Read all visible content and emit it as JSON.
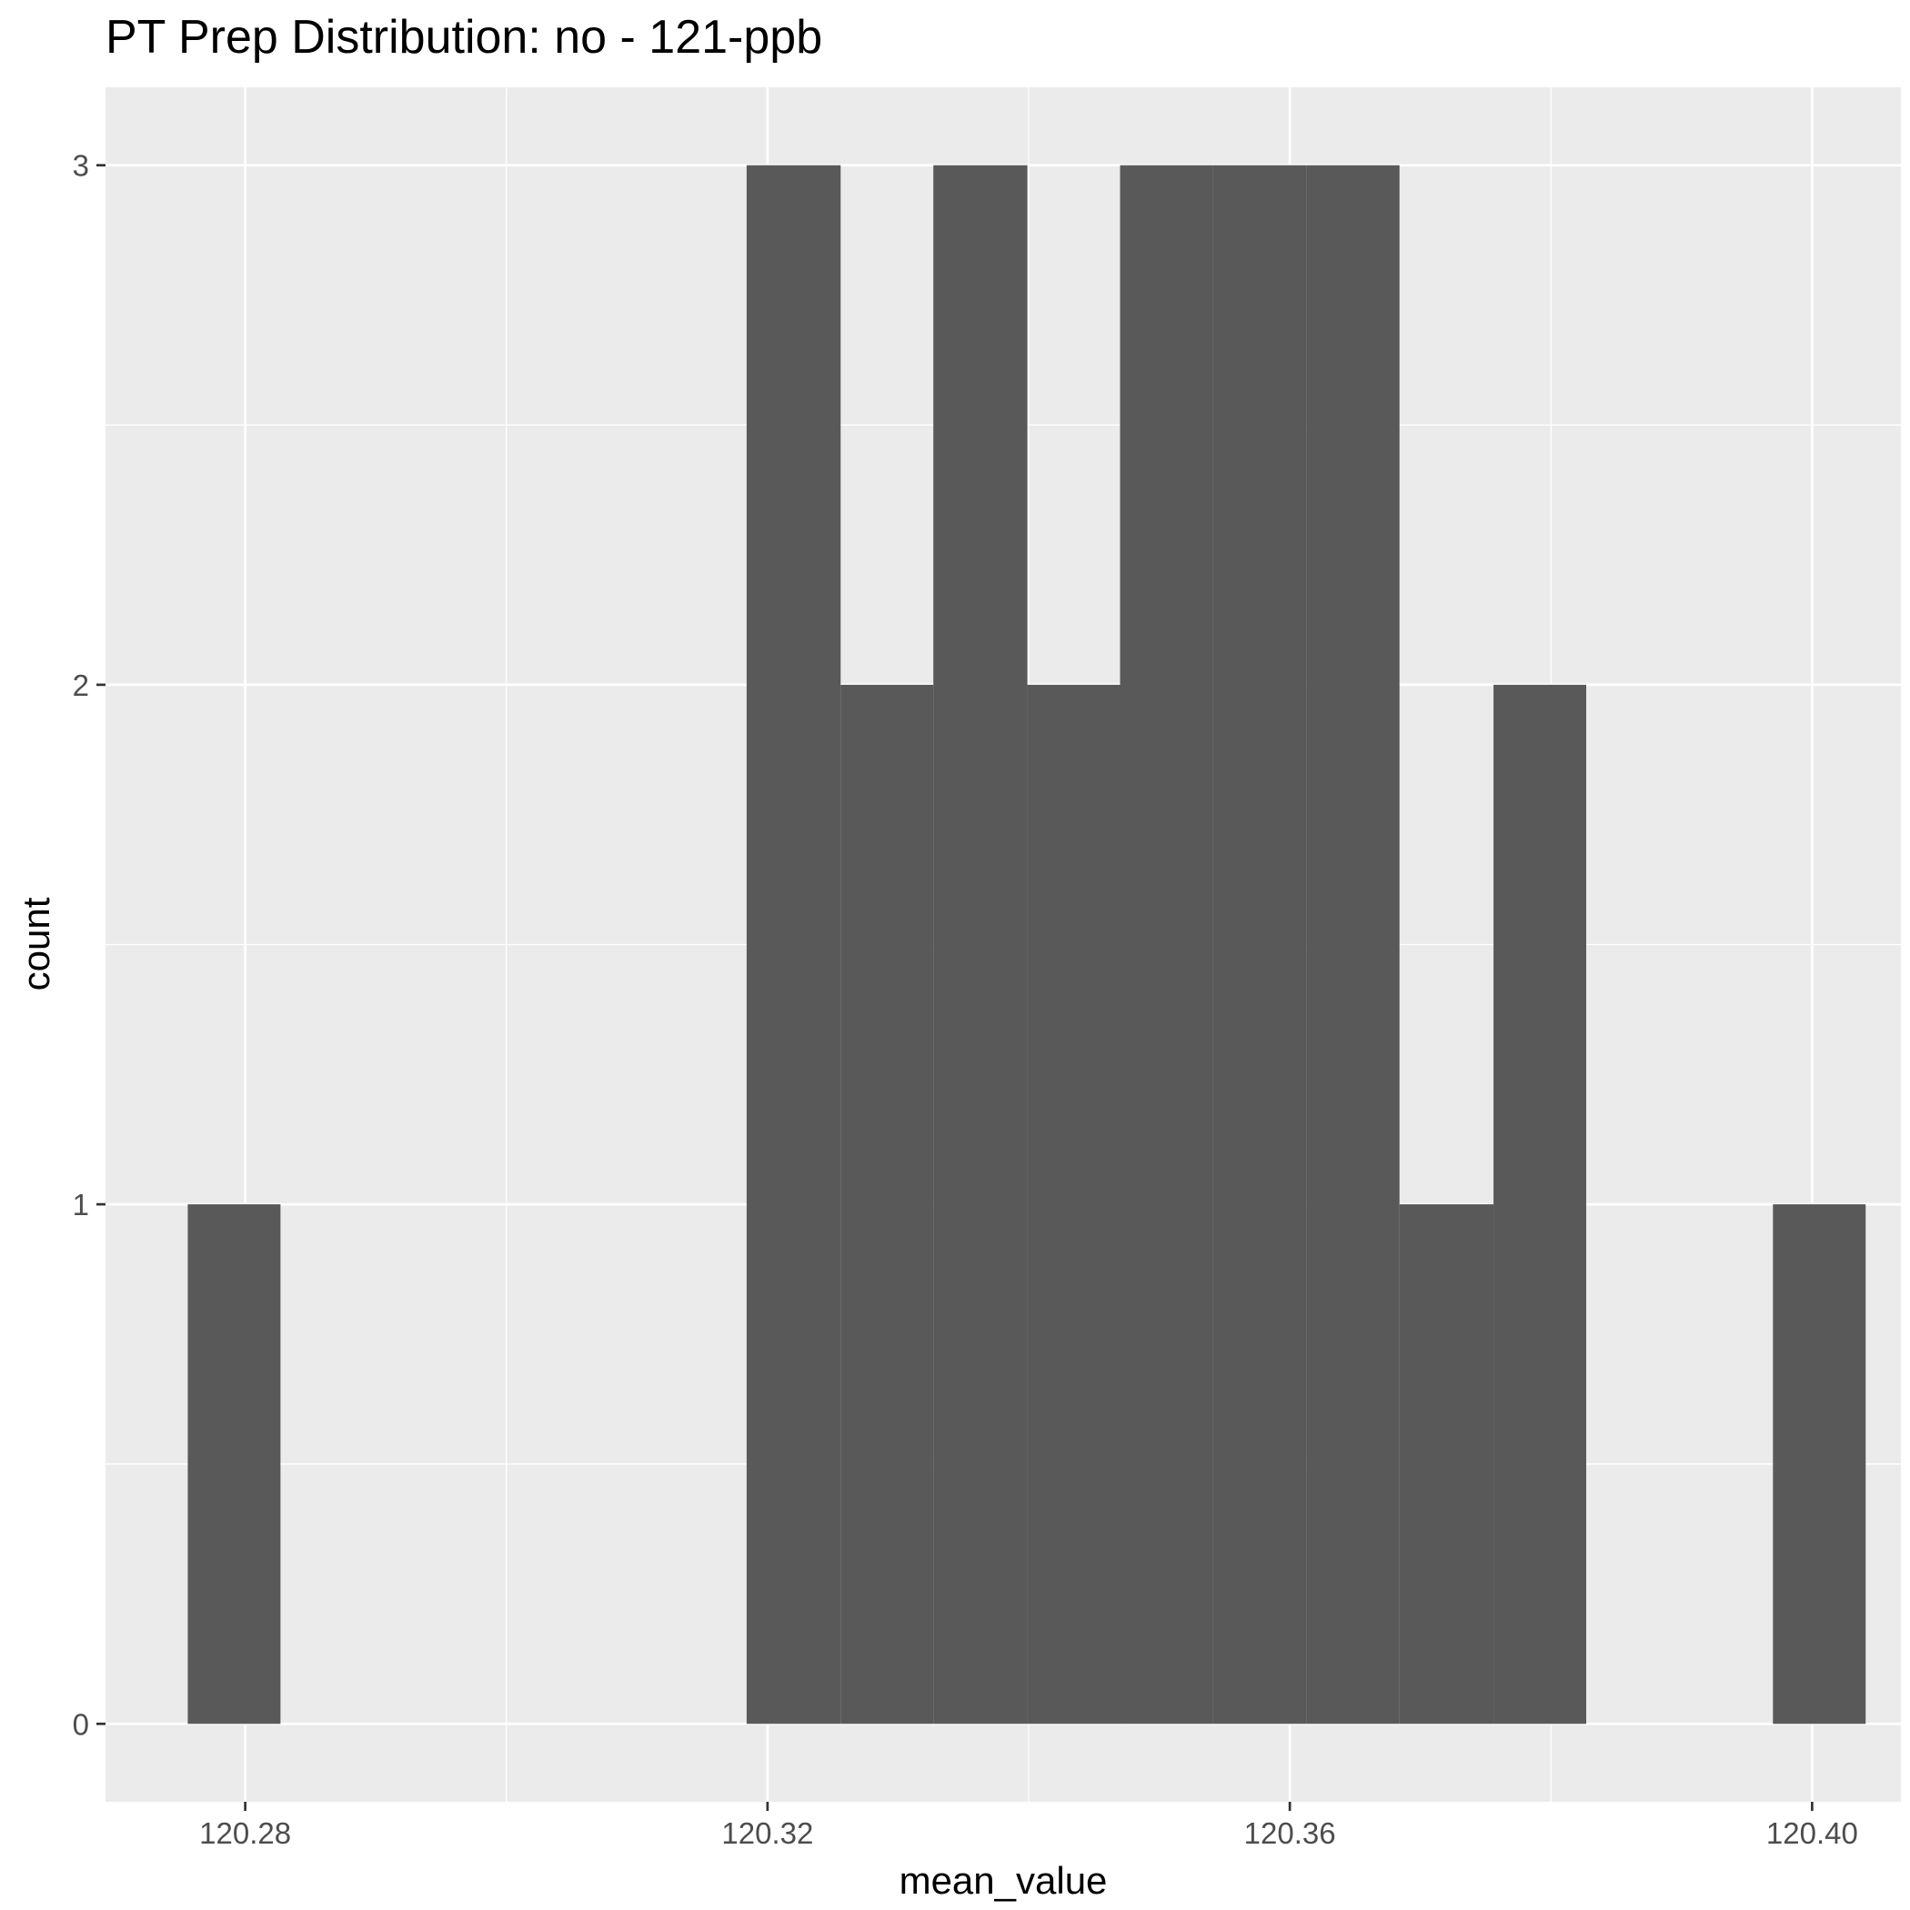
{
  "chart_data": {
    "type": "bar",
    "subtype": "histogram",
    "title": "PT Prep Distribution: no - 121-ppb",
    "xlabel": "mean_value",
    "ylabel": "count",
    "bin_width": 0.00714,
    "bins": [
      {
        "start": 120.2756,
        "end": 120.2827,
        "count": 1
      },
      {
        "start": 120.2827,
        "end": 120.2899,
        "count": 0
      },
      {
        "start": 120.2899,
        "end": 120.297,
        "count": 0
      },
      {
        "start": 120.297,
        "end": 120.3042,
        "count": 0
      },
      {
        "start": 120.3042,
        "end": 120.3113,
        "count": 0
      },
      {
        "start": 120.3113,
        "end": 120.3184,
        "count": 0
      },
      {
        "start": 120.3184,
        "end": 120.3256,
        "count": 3
      },
      {
        "start": 120.3256,
        "end": 120.3327,
        "count": 2
      },
      {
        "start": 120.3327,
        "end": 120.3399,
        "count": 3
      },
      {
        "start": 120.3399,
        "end": 120.347,
        "count": 2
      },
      {
        "start": 120.347,
        "end": 120.3541,
        "count": 3
      },
      {
        "start": 120.3541,
        "end": 120.3613,
        "count": 3
      },
      {
        "start": 120.3613,
        "end": 120.3684,
        "count": 3
      },
      {
        "start": 120.3684,
        "end": 120.3756,
        "count": 1
      },
      {
        "start": 120.3756,
        "end": 120.3827,
        "count": 2
      },
      {
        "start": 120.3827,
        "end": 120.3899,
        "count": 0
      },
      {
        "start": 120.3899,
        "end": 120.397,
        "count": 0
      },
      {
        "start": 120.397,
        "end": 120.4041,
        "count": 1
      }
    ],
    "xlim": [
      120.2693,
      120.4068
    ],
    "ylim": [
      -0.15,
      3.15
    ],
    "xticks": [
      120.28,
      120.32,
      120.36,
      120.4
    ],
    "xtick_labels": [
      "120.28",
      "120.32",
      "120.36",
      "120.40"
    ],
    "yticks": [
      0,
      1,
      2,
      3
    ],
    "ytick_labels": [
      "0",
      "1",
      "2",
      "3"
    ],
    "grid": true,
    "colors": {
      "bar": "#595959",
      "panel_background": "#ebebeb",
      "grid": "#ffffff",
      "tick": "#333333"
    }
  }
}
